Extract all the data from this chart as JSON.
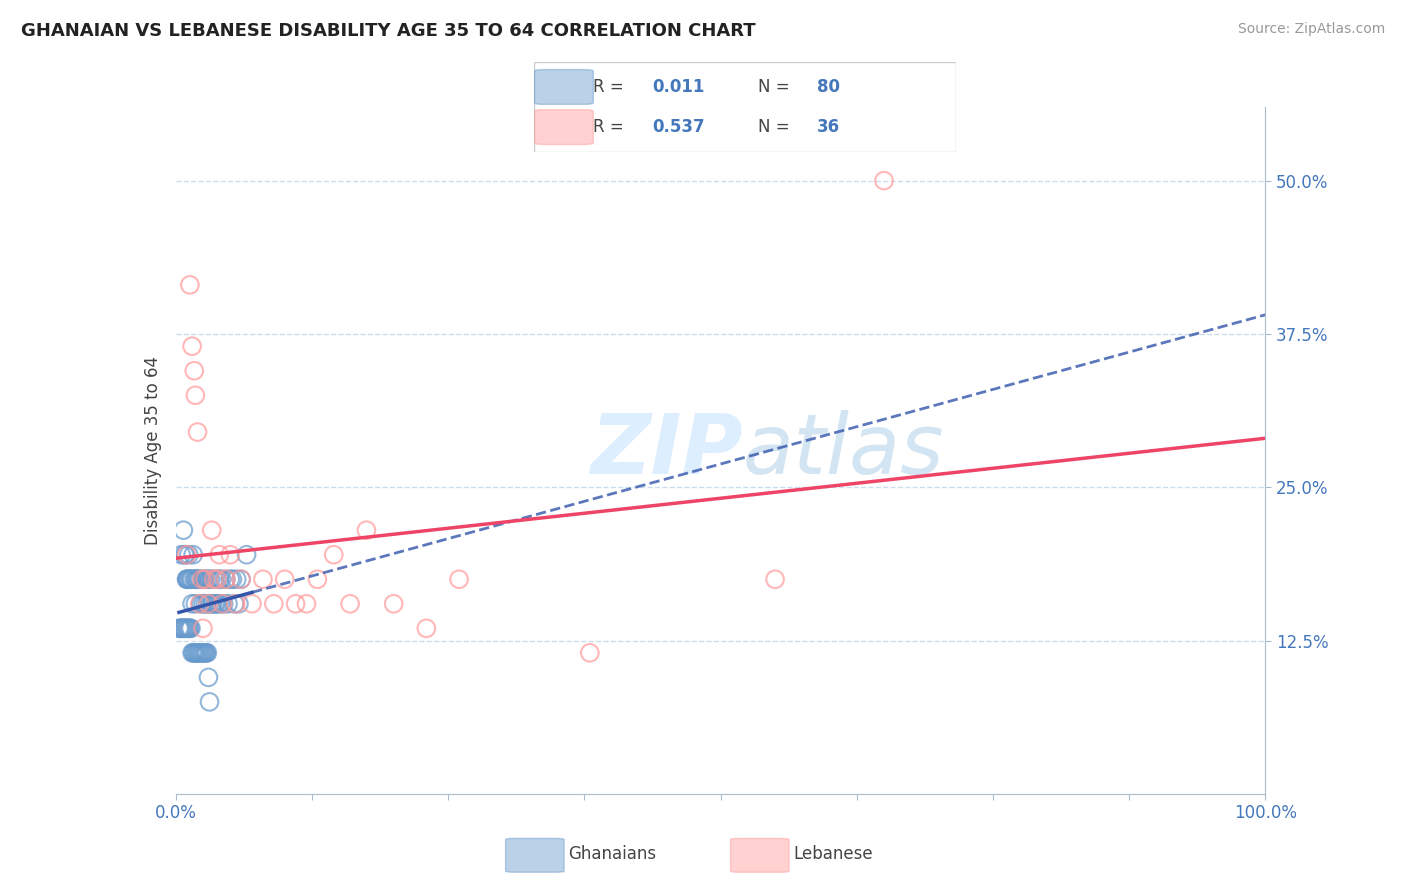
{
  "title": "GHANAIAN VS LEBANESE DISABILITY AGE 35 TO 64 CORRELATION CHART",
  "source": "Source: ZipAtlas.com",
  "ylabel": "Disability Age 35 to 64",
  "xlim": [
    0.0,
    1.0
  ],
  "ylim": [
    0.0,
    0.56
  ],
  "xticks": [
    0.0,
    0.125,
    0.25,
    0.375,
    0.5,
    0.625,
    0.75,
    0.875,
    1.0
  ],
  "xtick_labels": [
    "0.0%",
    "",
    "",
    "",
    "",
    "",
    "",
    "",
    "100.0%"
  ],
  "yticks": [
    0.125,
    0.25,
    0.375,
    0.5
  ],
  "ytick_labels": [
    "12.5%",
    "25.0%",
    "37.5%",
    "50.0%"
  ],
  "ghanaian_R": 0.011,
  "ghanaian_N": 80,
  "lebanese_R": 0.537,
  "lebanese_N": 36,
  "ghanaian_color": "#6699CC",
  "lebanese_color": "#FF9999",
  "ghanaian_line_color": "#3355AA",
  "lebanese_line_color": "#EE4466",
  "tick_label_color": "#4477BB",
  "grid_color": "#CCDDEE",
  "watermark_color": "#DDEEFF",
  "ghanaian_x": [
    0.005,
    0.007,
    0.008,
    0.009,
    0.01,
    0.01,
    0.011,
    0.012,
    0.012,
    0.013,
    0.014,
    0.015,
    0.015,
    0.016,
    0.017,
    0.018,
    0.018,
    0.019,
    0.02,
    0.021,
    0.022,
    0.023,
    0.024,
    0.025,
    0.026,
    0.027,
    0.028,
    0.029,
    0.03,
    0.031,
    0.032,
    0.033,
    0.034,
    0.035,
    0.036,
    0.037,
    0.038,
    0.039,
    0.04,
    0.041,
    0.042,
    0.044,
    0.046,
    0.048,
    0.05,
    0.052,
    0.054,
    0.056,
    0.058,
    0.06,
    0.003,
    0.004,
    0.005,
    0.006,
    0.007,
    0.008,
    0.009,
    0.01,
    0.011,
    0.012,
    0.013,
    0.014,
    0.015,
    0.016,
    0.017,
    0.018,
    0.019,
    0.02,
    0.021,
    0.022,
    0.023,
    0.024,
    0.025,
    0.026,
    0.027,
    0.028,
    0.029,
    0.03,
    0.031,
    0.065
  ],
  "ghanaian_y": [
    0.195,
    0.215,
    0.195,
    0.195,
    0.175,
    0.175,
    0.175,
    0.195,
    0.175,
    0.175,
    0.175,
    0.175,
    0.155,
    0.195,
    0.175,
    0.175,
    0.155,
    0.175,
    0.175,
    0.175,
    0.175,
    0.155,
    0.175,
    0.155,
    0.175,
    0.155,
    0.175,
    0.155,
    0.175,
    0.155,
    0.175,
    0.155,
    0.155,
    0.175,
    0.155,
    0.155,
    0.175,
    0.155,
    0.175,
    0.155,
    0.175,
    0.155,
    0.175,
    0.155,
    0.175,
    0.175,
    0.155,
    0.175,
    0.155,
    0.175,
    0.135,
    0.135,
    0.135,
    0.135,
    0.135,
    0.135,
    0.135,
    0.135,
    0.135,
    0.135,
    0.135,
    0.135,
    0.115,
    0.115,
    0.115,
    0.115,
    0.115,
    0.115,
    0.115,
    0.115,
    0.115,
    0.115,
    0.115,
    0.115,
    0.115,
    0.115,
    0.115,
    0.095,
    0.075,
    0.195
  ],
  "lebanese_x": [
    0.01,
    0.013,
    0.015,
    0.017,
    0.018,
    0.02,
    0.022,
    0.024,
    0.025,
    0.027,
    0.03,
    0.033,
    0.035,
    0.038,
    0.04,
    0.043,
    0.046,
    0.05,
    0.055,
    0.06,
    0.07,
    0.08,
    0.09,
    0.1,
    0.11,
    0.12,
    0.13,
    0.145,
    0.16,
    0.175,
    0.2,
    0.23,
    0.26,
    0.38,
    0.55,
    0.65
  ],
  "lebanese_y": [
    0.195,
    0.415,
    0.365,
    0.345,
    0.325,
    0.295,
    0.155,
    0.175,
    0.135,
    0.175,
    0.155,
    0.215,
    0.175,
    0.175,
    0.195,
    0.155,
    0.175,
    0.195,
    0.155,
    0.175,
    0.155,
    0.175,
    0.155,
    0.175,
    0.155,
    0.155,
    0.175,
    0.195,
    0.155,
    0.215,
    0.155,
    0.135,
    0.175,
    0.115,
    0.175,
    0.5
  ]
}
